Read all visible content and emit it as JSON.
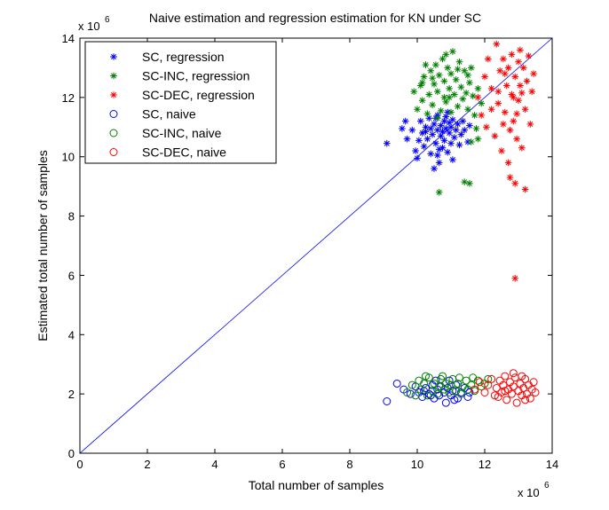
{
  "chart_data": {
    "type": "scatter",
    "title": "Naive estimation and regression estimation for KN under SC",
    "xlabel": "Total number of samples",
    "ylabel": "Estimated total number of samples",
    "x_exponent": {
      "base": "x 10",
      "power": "6"
    },
    "y_exponent": {
      "base": "x 10",
      "power": "6"
    },
    "xlim": [
      0,
      14
    ],
    "ylim": [
      0,
      14
    ],
    "x_ticks": [
      "0",
      "2",
      "4",
      "6",
      "8",
      "10",
      "12",
      "14"
    ],
    "y_ticks": [
      "0",
      "2",
      "4",
      "6",
      "8",
      "10",
      "12",
      "14"
    ],
    "grid": false,
    "legend_position": "top-left",
    "reference_line": {
      "from": [
        0,
        0
      ],
      "to": [
        14,
        14
      ],
      "color": "#0000ff"
    },
    "series": [
      {
        "name": "SC, regression",
        "marker": "asterisk",
        "color": "#0000ff",
        "points": [
          [
            9.1,
            10.45
          ],
          [
            9.55,
            10.95
          ],
          [
            9.7,
            10.6
          ],
          [
            9.85,
            10.9
          ],
          [
            9.95,
            10.2
          ],
          [
            10.0,
            9.95
          ],
          [
            10.05,
            10.55
          ],
          [
            10.1,
            11.2
          ],
          [
            10.15,
            10.8
          ],
          [
            10.2,
            10.35
          ],
          [
            10.25,
            11.0
          ],
          [
            10.3,
            10.6
          ],
          [
            10.35,
            11.3
          ],
          [
            10.4,
            10.1
          ],
          [
            10.45,
            10.75
          ],
          [
            10.5,
            11.1
          ],
          [
            10.5,
            9.6
          ],
          [
            10.55,
            10.45
          ],
          [
            10.6,
            10.9
          ],
          [
            10.6,
            11.4
          ],
          [
            10.65,
            9.8
          ],
          [
            10.7,
            10.7
          ],
          [
            10.7,
            11.05
          ],
          [
            10.75,
            10.3
          ],
          [
            10.8,
            11.2
          ],
          [
            10.8,
            10.55
          ],
          [
            10.85,
            10.95
          ],
          [
            10.9,
            11.5
          ],
          [
            10.9,
            10.15
          ],
          [
            10.95,
            10.8
          ],
          [
            11.0,
            11.0
          ],
          [
            11.0,
            10.45
          ],
          [
            11.05,
            11.25
          ],
          [
            11.1,
            10.65
          ],
          [
            11.15,
            10.9
          ],
          [
            11.2,
            11.1
          ],
          [
            11.25,
            10.4
          ],
          [
            11.3,
            10.75
          ],
          [
            11.35,
            11.2
          ],
          [
            11.4,
            10.9
          ],
          [
            11.5,
            10.5
          ],
          [
            11.55,
            11.05
          ],
          [
            10.55,
            11.3
          ],
          [
            10.4,
            10.95
          ],
          [
            10.25,
            10.85
          ],
          [
            10.65,
            10.25
          ],
          [
            10.85,
            11.35
          ],
          [
            10.95,
            11.15
          ],
          [
            10.75,
            10.85
          ],
          [
            10.6,
            10.05
          ],
          [
            11.05,
            9.9
          ],
          [
            9.65,
            11.2
          ]
        ]
      },
      {
        "name": "SC-INC, regression",
        "marker": "asterisk",
        "color": "#008000",
        "points": [
          [
            9.9,
            12.2
          ],
          [
            10.0,
            11.6
          ],
          [
            10.1,
            12.4
          ],
          [
            10.15,
            11.9
          ],
          [
            10.2,
            12.7
          ],
          [
            10.3,
            11.45
          ],
          [
            10.35,
            12.1
          ],
          [
            10.4,
            12.9
          ],
          [
            10.45,
            11.75
          ],
          [
            10.5,
            12.45
          ],
          [
            10.55,
            13.1
          ],
          [
            10.6,
            11.3
          ],
          [
            10.6,
            12.2
          ],
          [
            10.65,
            12.75
          ],
          [
            10.7,
            11.55
          ],
          [
            10.75,
            13.3
          ],
          [
            10.8,
            12.0
          ],
          [
            10.8,
            12.55
          ],
          [
            10.85,
            11.85
          ],
          [
            10.9,
            13.0
          ],
          [
            10.95,
            12.3
          ],
          [
            11.0,
            11.5
          ],
          [
            11.0,
            12.8
          ],
          [
            11.05,
            13.55
          ],
          [
            11.1,
            12.1
          ],
          [
            11.15,
            12.6
          ],
          [
            11.2,
            11.7
          ],
          [
            11.25,
            13.2
          ],
          [
            11.3,
            12.35
          ],
          [
            11.35,
            11.95
          ],
          [
            11.4,
            12.9
          ],
          [
            11.45,
            12.15
          ],
          [
            11.5,
            11.6
          ],
          [
            11.55,
            12.5
          ],
          [
            11.6,
            13.0
          ],
          [
            11.65,
            12.05
          ],
          [
            11.7,
            11.4
          ],
          [
            11.8,
            12.3
          ],
          [
            11.9,
            11.8
          ],
          [
            10.65,
            8.8
          ],
          [
            11.4,
            9.15
          ],
          [
            11.55,
            9.1
          ],
          [
            11.6,
            10.5
          ],
          [
            11.75,
            10.95
          ],
          [
            10.25,
            13.1
          ],
          [
            10.45,
            12.65
          ],
          [
            10.95,
            12.0
          ],
          [
            11.2,
            12.95
          ],
          [
            10.85,
            13.45
          ],
          [
            10.15,
            12.5
          ],
          [
            11.5,
            12.75
          ],
          [
            11.8,
            10.6
          ]
        ]
      },
      {
        "name": "SC-DEC, regression",
        "marker": "asterisk",
        "color": "#ff0000",
        "points": [
          [
            11.8,
            12.0
          ],
          [
            11.9,
            11.4
          ],
          [
            12.0,
            12.7
          ],
          [
            12.05,
            11.0
          ],
          [
            12.1,
            13.3
          ],
          [
            12.2,
            12.3
          ],
          [
            12.3,
            10.7
          ],
          [
            12.35,
            13.8
          ],
          [
            12.4,
            11.8
          ],
          [
            12.45,
            12.9
          ],
          [
            12.5,
            10.2
          ],
          [
            12.55,
            13.3
          ],
          [
            12.6,
            11.5
          ],
          [
            12.65,
            12.4
          ],
          [
            12.7,
            13.0
          ],
          [
            12.75,
            10.9
          ],
          [
            12.8,
            12.1
          ],
          [
            12.8,
            13.45
          ],
          [
            12.85,
            11.2
          ],
          [
            12.9,
            12.7
          ],
          [
            12.95,
            10.6
          ],
          [
            13.0,
            13.2
          ],
          [
            13.0,
            11.9
          ],
          [
            13.05,
            12.4
          ],
          [
            13.1,
            10.3
          ],
          [
            13.15,
            13.0
          ],
          [
            13.2,
            11.6
          ],
          [
            13.25,
            12.55
          ],
          [
            13.3,
            13.4
          ],
          [
            13.35,
            11.1
          ],
          [
            13.4,
            12.2
          ],
          [
            13.45,
            12.8
          ],
          [
            12.7,
            9.8
          ],
          [
            12.75,
            9.3
          ],
          [
            12.9,
            9.1
          ],
          [
            13.2,
            8.9
          ],
          [
            12.9,
            5.9
          ],
          [
            12.6,
            12.8
          ],
          [
            12.4,
            12.2
          ],
          [
            12.55,
            11.1
          ],
          [
            13.05,
            13.6
          ],
          [
            12.85,
            12.0
          ],
          [
            13.1,
            12.15
          ],
          [
            12.2,
            11.6
          ],
          [
            12.95,
            11.45
          ]
        ]
      },
      {
        "name": "SC, naive",
        "marker": "circle",
        "color": "#0000ff",
        "points": [
          [
            9.1,
            1.75
          ],
          [
            9.4,
            2.35
          ],
          [
            9.6,
            2.15
          ],
          [
            9.8,
            2.0
          ],
          [
            9.95,
            2.25
          ],
          [
            10.05,
            2.05
          ],
          [
            10.15,
            1.9
          ],
          [
            10.25,
            2.2
          ],
          [
            10.35,
            2.0
          ],
          [
            10.45,
            2.3
          ],
          [
            10.5,
            1.85
          ],
          [
            10.6,
            2.15
          ],
          [
            10.65,
            1.95
          ],
          [
            10.7,
            2.25
          ],
          [
            10.8,
            2.05
          ],
          [
            10.85,
            1.7
          ],
          [
            10.9,
            2.2
          ],
          [
            11.0,
            1.95
          ],
          [
            11.05,
            2.1
          ],
          [
            11.15,
            2.3
          ],
          [
            11.2,
            1.85
          ],
          [
            11.3,
            2.05
          ],
          [
            11.4,
            2.2
          ],
          [
            11.5,
            1.9
          ],
          [
            11.55,
            2.05
          ],
          [
            10.55,
            2.45
          ],
          [
            10.95,
            2.45
          ],
          [
            10.4,
            1.95
          ],
          [
            11.1,
            1.8
          ],
          [
            10.2,
            2.1
          ]
        ]
      },
      {
        "name": "SC-INC, naive",
        "marker": "circle",
        "color": "#008000",
        "points": [
          [
            9.7,
            2.05
          ],
          [
            9.85,
            2.3
          ],
          [
            9.95,
            1.95
          ],
          [
            10.05,
            2.45
          ],
          [
            10.1,
            2.15
          ],
          [
            10.2,
            2.35
          ],
          [
            10.3,
            1.95
          ],
          [
            10.35,
            2.55
          ],
          [
            10.45,
            2.1
          ],
          [
            10.5,
            2.35
          ],
          [
            10.6,
            2.0
          ],
          [
            10.65,
            2.25
          ],
          [
            10.7,
            2.5
          ],
          [
            10.8,
            2.15
          ],
          [
            10.85,
            2.35
          ],
          [
            10.95,
            2.05
          ],
          [
            11.0,
            2.3
          ],
          [
            11.05,
            2.5
          ],
          [
            11.15,
            2.1
          ],
          [
            11.2,
            2.35
          ],
          [
            11.3,
            2.0
          ],
          [
            11.35,
            2.25
          ],
          [
            11.45,
            2.45
          ],
          [
            11.5,
            2.15
          ],
          [
            11.6,
            2.3
          ],
          [
            11.7,
            2.1
          ],
          [
            11.8,
            2.45
          ],
          [
            11.9,
            2.25
          ],
          [
            12.0,
            2.35
          ],
          [
            12.1,
            2.5
          ],
          [
            10.25,
            2.6
          ],
          [
            10.75,
            2.6
          ],
          [
            11.25,
            2.55
          ],
          [
            11.65,
            2.55
          ]
        ]
      },
      {
        "name": "SC-DEC, naive",
        "marker": "circle",
        "color": "#ff0000",
        "points": [
          [
            11.7,
            2.15
          ],
          [
            11.85,
            2.4
          ],
          [
            12.0,
            2.05
          ],
          [
            12.1,
            2.3
          ],
          [
            12.2,
            2.5
          ],
          [
            12.3,
            1.95
          ],
          [
            12.35,
            2.2
          ],
          [
            12.45,
            2.45
          ],
          [
            12.5,
            2.05
          ],
          [
            12.55,
            2.3
          ],
          [
            12.6,
            2.6
          ],
          [
            12.65,
            1.8
          ],
          [
            12.7,
            2.15
          ],
          [
            12.75,
            2.4
          ],
          [
            12.8,
            2.0
          ],
          [
            12.85,
            2.25
          ],
          [
            12.9,
            2.55
          ],
          [
            12.95,
            1.7
          ],
          [
            13.0,
            2.1
          ],
          [
            13.05,
            2.35
          ],
          [
            13.1,
            1.95
          ],
          [
            13.15,
            2.2
          ],
          [
            13.2,
            2.5
          ],
          [
            13.25,
            2.0
          ],
          [
            13.3,
            2.3
          ],
          [
            13.35,
            1.85
          ],
          [
            13.4,
            2.15
          ],
          [
            13.45,
            2.4
          ],
          [
            13.5,
            2.05
          ],
          [
            12.4,
            1.9
          ],
          [
            12.85,
            2.7
          ],
          [
            13.1,
            2.6
          ],
          [
            12.6,
            2.1
          ],
          [
            13.2,
            1.8
          ]
        ]
      }
    ]
  }
}
